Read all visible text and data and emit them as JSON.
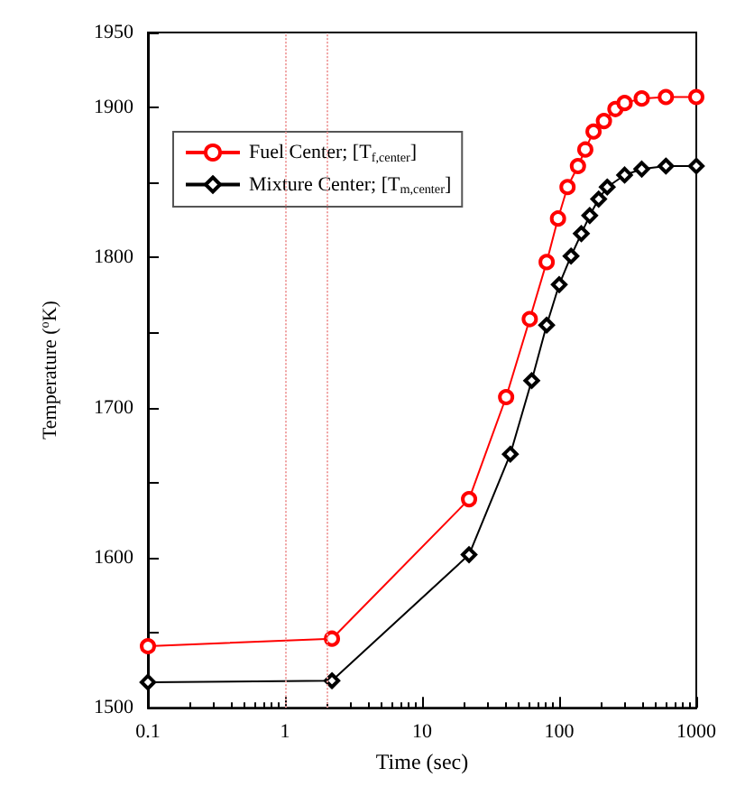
{
  "chart_data": {
    "type": "line",
    "xlabel": "Time (sec)",
    "ylabel": "Temperature ($^{o}$K)",
    "log": "x",
    "xlim": [
      0.1,
      1000
    ],
    "xticks": [
      0.1,
      1,
      10,
      100,
      1000
    ],
    "ylim": [
      1500,
      1950
    ],
    "yticks": [
      1500,
      {
        "value": 1550,
        "label": null
      },
      1600,
      {
        "value": 1650,
        "label": null
      },
      1700,
      {
        "value": 1750,
        "label": null
      },
      1800,
      {
        "value": 1850,
        "label": null
      },
      1900,
      1950
    ],
    "grid": false,
    "legend": "top left",
    "line_style": "solid",
    "ref_lines": [
      {
        "axis": "x",
        "value": 1,
        "color": "#f0a0a0",
        "line_style": "dotted"
      },
      {
        "axis": "x",
        "value": 2,
        "color": "#f0a0a0",
        "line_style": "dotted"
      }
    ],
    "series": [
      {
        "name": "Fuel Center; [T$_{f,center}$]",
        "color": "#ff0000",
        "marker": "circle",
        "x": [
          0.1,
          2.2,
          22,
          41,
          61,
          81,
          98,
          115,
          137,
          155,
          178,
          212,
          257,
          300,
          400,
          600,
          1000
        ],
        "values": [
          1541,
          1546,
          1639,
          1707,
          1759,
          1797,
          1826,
          1847,
          1861,
          1872,
          1884,
          1891,
          1899,
          1903,
          1906,
          1907,
          1907
        ]
      },
      {
        "name": "Mixture Center; [T$_{m,center}$]",
        "color": "#000000",
        "marker": "diamond",
        "x": [
          0.1,
          2.2,
          22,
          44,
          63,
          81,
          100,
          122,
          145,
          167,
          194,
          224,
          300,
          400,
          600,
          1000
        ],
        "values": [
          1517,
          1518,
          1602,
          1669,
          1718,
          1755,
          1782,
          1801,
          1816,
          1828,
          1839,
          1847,
          1855,
          1859,
          1861,
          1861
        ]
      }
    ]
  }
}
